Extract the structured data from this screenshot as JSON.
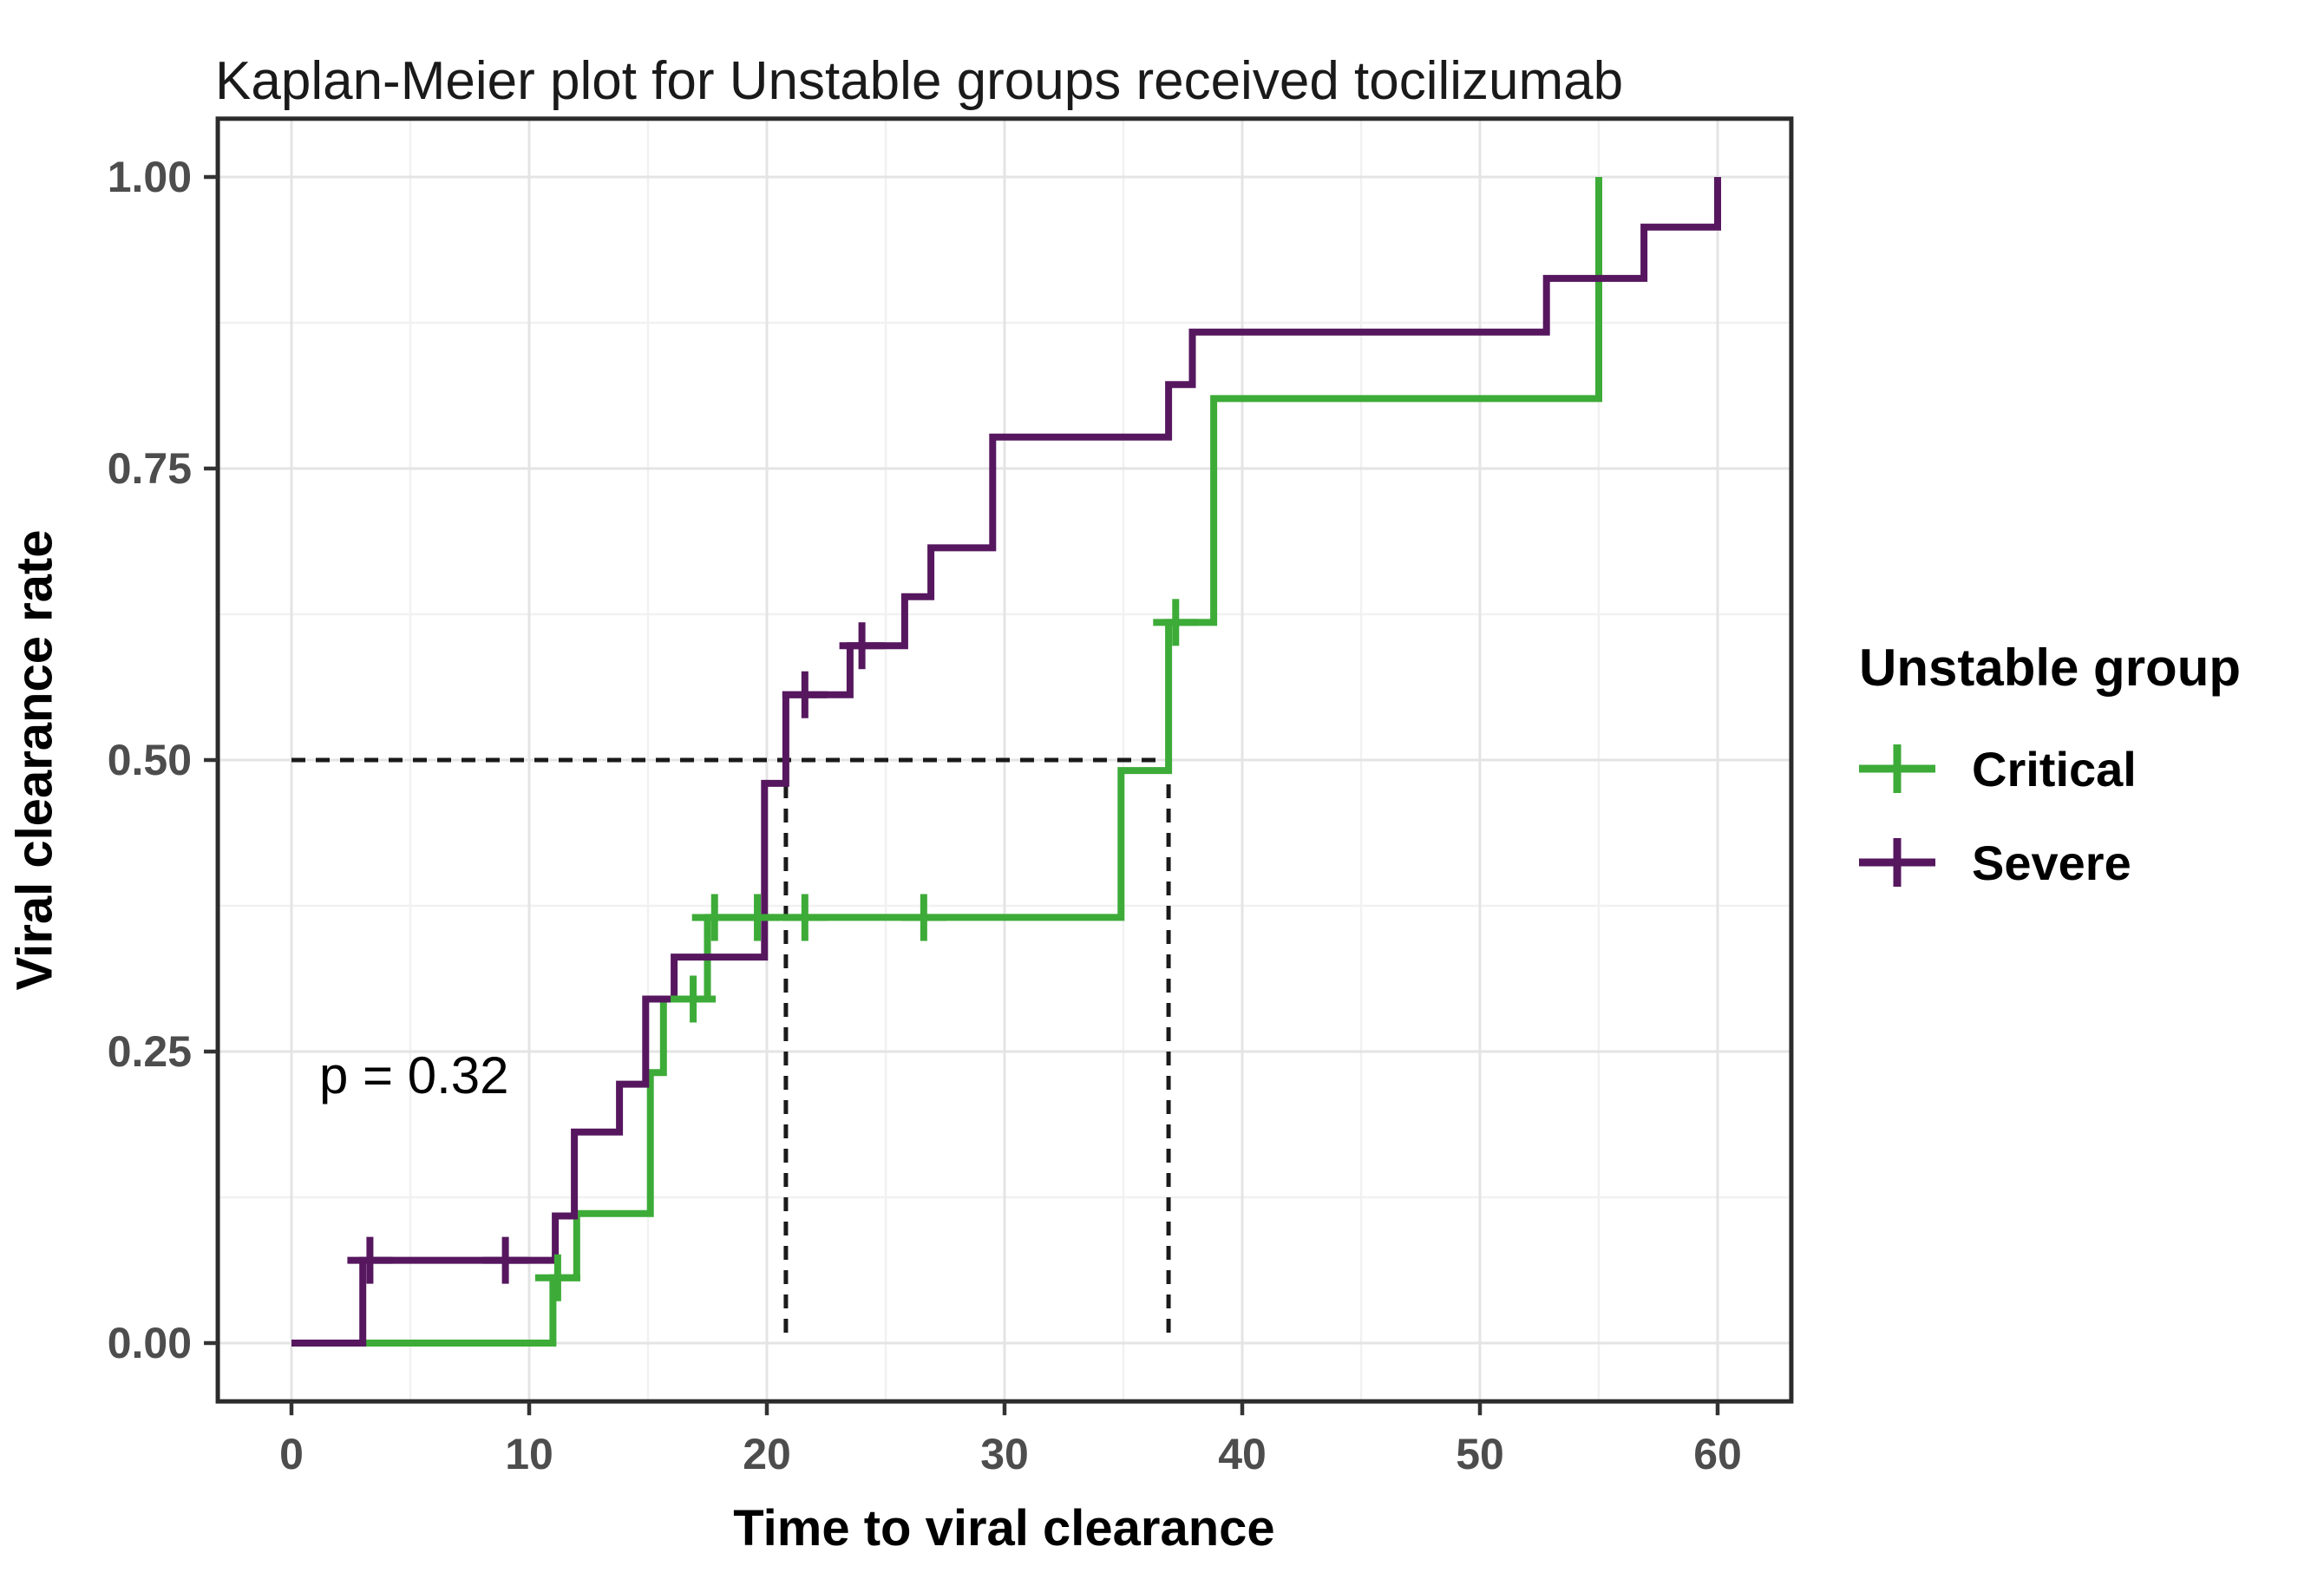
{
  "title": "Kaplan-Meier plot for Unstable groups received tocilizumab",
  "p_value_label": "p = 0.32",
  "axes": {
    "x": {
      "title": "Time to viral clearance",
      "tick_labels": [
        "0",
        "10",
        "20",
        "30",
        "40",
        "50",
        "60"
      ],
      "tick_values": [
        0,
        10,
        20,
        30,
        40,
        50,
        60
      ],
      "minor_tick_values": [
        5,
        15,
        25,
        35,
        45,
        55
      ],
      "range": [
        -3.1,
        63.1
      ]
    },
    "y": {
      "title": "Viral clearance rate",
      "tick_labels": [
        "0.00",
        "0.25",
        "0.50",
        "0.75",
        "1.00"
      ],
      "tick_values": [
        0,
        0.25,
        0.5,
        0.75,
        1
      ],
      "minor_tick_values": [
        0.125,
        0.375,
        0.625,
        0.875
      ],
      "range": [
        -0.05,
        1.05
      ]
    }
  },
  "legend": {
    "title": "Unstable group",
    "items": [
      {
        "label": "Critical",
        "color": "#3dab38"
      },
      {
        "label": "Severe",
        "color": "#56175f"
      }
    ]
  },
  "colors": {
    "critical": "#3dab38",
    "severe": "#56175f",
    "grid_major": "#e4e4e4",
    "grid_minor": "#f1f1f1",
    "axis_text": "#4d4d4d",
    "panel_border": "#2b2b2b",
    "dashed_guide": "#1a1a1a",
    "background": "#ffffff"
  },
  "chart_data": {
    "type": "line",
    "subtype": "kaplan-meier-step",
    "title": "Kaplan-Meier plot for Unstable groups received tocilizumab",
    "xlabel": "Time to viral clearance",
    "ylabel": "Viral clearance rate",
    "xlim": [
      0,
      60
    ],
    "ylim": [
      0,
      1
    ],
    "grid": true,
    "legend_position": "right",
    "p_value": "p = 0.32",
    "median_guides": {
      "y": 0.5,
      "x_values": [
        20.8,
        36.9
      ],
      "h_line_x_start": 0,
      "h_line_x_end": 36.9,
      "median_labels": [
        21,
        37
      ]
    },
    "series": [
      {
        "name": "Critical",
        "color": "#3dab38",
        "steps": [
          [
            0,
            0
          ],
          [
            11,
            0
          ],
          [
            11,
            0.056
          ],
          [
            12,
            0.056
          ],
          [
            12,
            0.111
          ],
          [
            15.1,
            0.111
          ],
          [
            15.1,
            0.232
          ],
          [
            15.65,
            0.232
          ],
          [
            15.65,
            0.295
          ],
          [
            17.5,
            0.295
          ],
          [
            17.5,
            0.365
          ],
          [
            34.9,
            0.365
          ],
          [
            34.9,
            0.491
          ],
          [
            36.9,
            0.491
          ],
          [
            36.9,
            0.618
          ],
          [
            38.8,
            0.618
          ],
          [
            38.8,
            0.81
          ],
          [
            55,
            0.81
          ],
          [
            55,
            1.0
          ]
        ],
        "censor_marks": [
          [
            11.2,
            0.056
          ],
          [
            16.9,
            0.295
          ],
          [
            17.8,
            0.365
          ],
          [
            19.6,
            0.365
          ],
          [
            21.6,
            0.365
          ],
          [
            26.6,
            0.365
          ],
          [
            37.2,
            0.618
          ]
        ]
      },
      {
        "name": "Severe",
        "color": "#56175f",
        "steps": [
          [
            0,
            0
          ],
          [
            3,
            0
          ],
          [
            3,
            0.071
          ],
          [
            11.1,
            0.071
          ],
          [
            11.1,
            0.109
          ],
          [
            11.9,
            0.109
          ],
          [
            11.9,
            0.181
          ],
          [
            13.8,
            0.181
          ],
          [
            13.8,
            0.222
          ],
          [
            14.9,
            0.222
          ],
          [
            14.9,
            0.295
          ],
          [
            16.1,
            0.295
          ],
          [
            16.1,
            0.331
          ],
          [
            19.9,
            0.331
          ],
          [
            19.9,
            0.48
          ],
          [
            20.8,
            0.48
          ],
          [
            20.8,
            0.556
          ],
          [
            23.5,
            0.556
          ],
          [
            23.5,
            0.598
          ],
          [
            25.8,
            0.598
          ],
          [
            25.8,
            0.64
          ],
          [
            26.9,
            0.64
          ],
          [
            26.9,
            0.682
          ],
          [
            29.5,
            0.682
          ],
          [
            29.5,
            0.777
          ],
          [
            36.9,
            0.777
          ],
          [
            36.9,
            0.822
          ],
          [
            37.9,
            0.822
          ],
          [
            37.9,
            0.867
          ],
          [
            52.8,
            0.867
          ],
          [
            52.8,
            0.913
          ],
          [
            56.9,
            0.913
          ],
          [
            56.9,
            0.957
          ],
          [
            60,
            0.957
          ],
          [
            60,
            1.0
          ]
        ],
        "censor_marks": [
          [
            3.3,
            0.071
          ],
          [
            9,
            0.071
          ],
          [
            21.6,
            0.556
          ],
          [
            24,
            0.598
          ]
        ]
      }
    ]
  }
}
